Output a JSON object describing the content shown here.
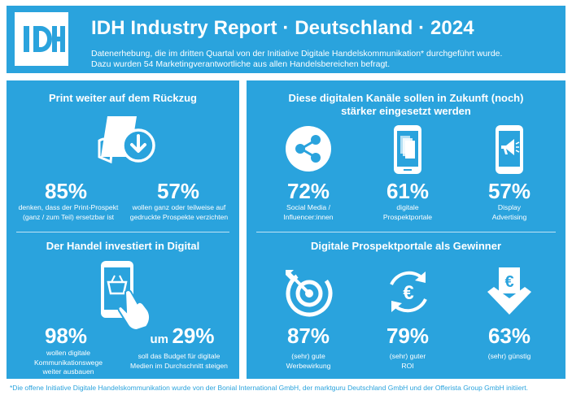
{
  "colors": {
    "brand": "#2aa3dd",
    "background": "#ffffff",
    "text_on_brand": "#ffffff"
  },
  "header": {
    "logo_icon": "idh-logo-icon",
    "title": "IDH Industry Report · Deutschland · 2024",
    "subtitle_line1": "Datenerhebung, die im dritten Quartal von der Initiative Digitale Handelskommunikation* durchgeführt wurde.",
    "subtitle_line2": "Dazu wurden 54 Marketingverantwortliche aus allen Handelsbereichen befragt."
  },
  "print": {
    "title": "Print weiter auf dem Rückzug",
    "icon": "flyer-download-icon",
    "stats": [
      {
        "value": "85%",
        "line1": "denken, dass der Print-Prospekt",
        "line2": "(ganz / zum Teil) ersetzbar ist"
      },
      {
        "value": "57%",
        "line1": "wollen ganz oder teilweise auf",
        "line2": "gedruckte Prospekte verzichten"
      }
    ]
  },
  "invest": {
    "title": "Der Handel investiert in Digital",
    "icon": "phone-basket-hand-icon",
    "stats": [
      {
        "value": "98%",
        "line1": "wollen digitale",
        "line2": "Kommunikationswege",
        "line3": "weiter ausbauen"
      },
      {
        "prefix": "um",
        "value": "29%",
        "line1": "soll das Budget für digitale",
        "line2": "Medien im Durchschnitt steigen"
      }
    ]
  },
  "channels": {
    "title_line1": "Diese digitalen Kanäle sollen in Zukunft (noch)",
    "title_line2": "stärker eingesetzt werden",
    "items": [
      {
        "icon": "share-icon",
        "value": "72%",
        "line1": "Social Media /",
        "line2": "Influencer:innen"
      },
      {
        "icon": "mobile-pages-icon",
        "value": "61%",
        "line1": "digitale",
        "line2": "Prospektportale"
      },
      {
        "icon": "megaphone-phone-icon",
        "value": "57%",
        "line1": "Display",
        "line2": "Advertising"
      }
    ]
  },
  "winners": {
    "title": "Digitale Prospektportale als Gewinner",
    "items": [
      {
        "icon": "target-icon",
        "value": "87%",
        "line1": "(sehr) gute",
        "line2": "Werbewirkung"
      },
      {
        "icon": "euro-cycle-icon",
        "value": "79%",
        "line1": "(sehr) guter",
        "line2": "ROI"
      },
      {
        "icon": "euro-arrow-down-icon",
        "value": "63%",
        "line1": "(sehr) günstig",
        "line2": ""
      }
    ]
  },
  "footnote": "*Die offene Initiative Digitale Handelskommunikation wurde von der Bonial International GmbH, der marktguru Deutschland GmbH und der Offerista Group GmbH initiiert."
}
